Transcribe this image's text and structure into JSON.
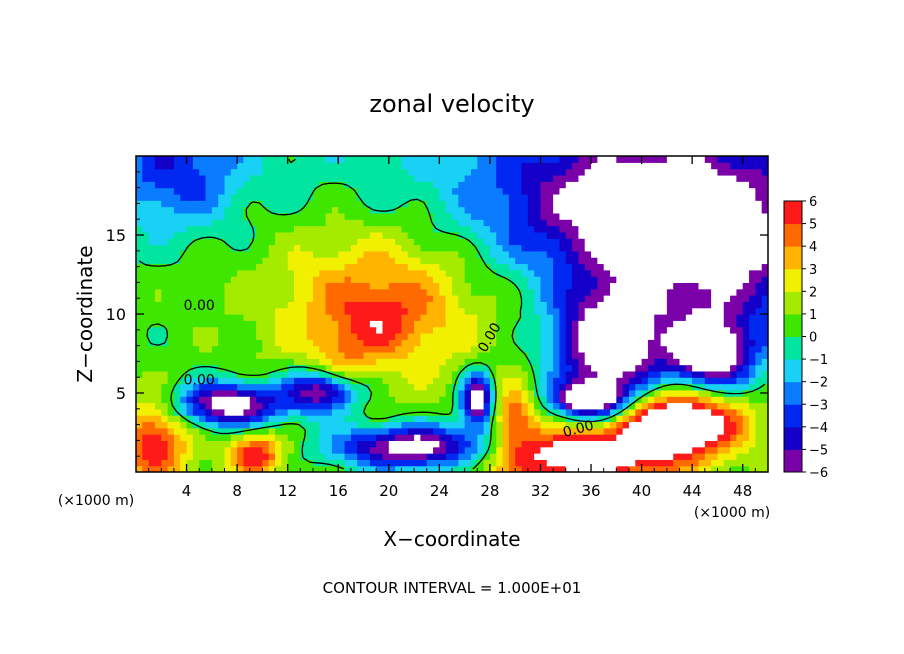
{
  "chart_data": {
    "type": "heatmap",
    "title": "zonal velocity",
    "xlabel": "X−coordinate",
    "ylabel": "Z−coordinate",
    "x_unit_label": "(×1000 m)",
    "x_unit_label_right": "(×1000 m)",
    "xlim": [
      0,
      50
    ],
    "ylim": [
      0,
      20
    ],
    "x_ticks": [
      4,
      8,
      12,
      16,
      20,
      24,
      28,
      32,
      36,
      40,
      44,
      48
    ],
    "y_ticks": [
      5,
      10,
      15
    ],
    "colorbar": {
      "min": -6,
      "max": 6,
      "tick_values": [
        6,
        5,
        4,
        3,
        2,
        1,
        0,
        -1,
        -2,
        -3,
        -4,
        -5,
        -6
      ],
      "tick_labels": [
        "6",
        "5",
        "4",
        "3",
        "2",
        "1",
        "0",
        "−1",
        "−2",
        "−3",
        "−4",
        "−5",
        "−6"
      ],
      "colors": [
        "#7a00a8",
        "#1400c8",
        "#0028f0",
        "#0a7cff",
        "#19d0f5",
        "#00e6a0",
        "#3ee600",
        "#a5eb00",
        "#f0f000",
        "#ffb400",
        "#ff6a00",
        "#ff1a1a",
        "#ff8a8a",
        "#ffffff"
      ]
    },
    "contour_labels": [
      "0.00",
      "0.00",
      "0.00",
      "0.00"
    ],
    "footnote": "CONTOUR INTERVAL = 1.000E+01",
    "field_approx": {
      "note_blobs": [
        {
          "x": 19.5,
          "z": 11.0,
          "sx": 6.5,
          "sz": 3.5,
          "v": 4.2
        },
        {
          "x": 19.0,
          "z": 9.5,
          "sx": 2.5,
          "sz": 1.5,
          "v": 1.8
        },
        {
          "x": 16.0,
          "z": 6.3,
          "sx": 1.6,
          "sz": 1.4,
          "v": 2.5
        },
        {
          "x": 38.0,
          "z": 17.0,
          "sx": 8.0,
          "sz": 3.5,
          "v": -5.5
        },
        {
          "x": 46.0,
          "z": 14.0,
          "sx": 6.0,
          "sz": 4.0,
          "v": -5.0
        },
        {
          "x": 3.0,
          "z": 19.0,
          "sx": 3.5,
          "sz": 2.5,
          "v": -3.5
        },
        {
          "x": 37.5,
          "z": 8.0,
          "sx": 3.0,
          "sz": 2.5,
          "v": -8.0
        },
        {
          "x": 45.5,
          "z": 7.5,
          "sx": 2.2,
          "sz": 1.6,
          "v": -8.0
        },
        {
          "x": 7.5,
          "z": 4.3,
          "sx": 3.0,
          "sz": 1.0,
          "v": -8.0
        },
        {
          "x": 15.0,
          "z": 5.2,
          "sx": 2.0,
          "sz": 1.0,
          "v": -8.0
        },
        {
          "x": 22.0,
          "z": 1.6,
          "sx": 4.5,
          "sz": 1.0,
          "v": -8.0
        },
        {
          "x": 36.0,
          "z": 4.6,
          "sx": 2.0,
          "sz": 0.8,
          "v": -8.0
        },
        {
          "x": 27.0,
          "z": 4.6,
          "sx": 0.9,
          "sz": 1.2,
          "v": -8.0
        },
        {
          "x": 43.0,
          "z": 3.2,
          "sx": 3.5,
          "sz": 1.5,
          "v": 9.0
        },
        {
          "x": 35.0,
          "z": 1.0,
          "sx": 5.0,
          "sz": 1.3,
          "v": 7.0
        },
        {
          "x": 1.5,
          "z": 2.0,
          "sx": 1.8,
          "sz": 1.8,
          "v": 5.0
        },
        {
          "x": 9.5,
          "z": 1.2,
          "sx": 1.5,
          "sz": 1.0,
          "v": 5.0
        },
        {
          "x": 30.0,
          "z": 3.5,
          "sx": 1.2,
          "sz": 1.5,
          "v": 4.0
        }
      ]
    }
  }
}
